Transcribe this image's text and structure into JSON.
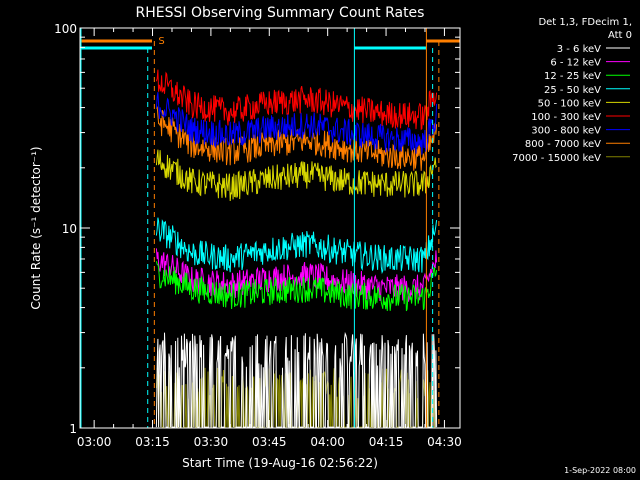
{
  "chart_data": {
    "type": "line",
    "title": "RHESSI Observing Summary Count Rates",
    "xlabel": "Start Time (19-Aug-16 02:56:22)",
    "ylabel": "Count Rate (s⁻¹ detector⁻¹)",
    "yscale": "log",
    "ylim": [
      1,
      100
    ],
    "xlim": [
      "02:56:22",
      "04:34:00"
    ],
    "x_ticks": [
      "03:00",
      "03:15",
      "03:30",
      "03:45",
      "04:00",
      "04:15",
      "04:30"
    ],
    "y_ticks": [
      "1",
      "10",
      "100"
    ],
    "legend_header": [
      "Det 1,3, FDecim 1,",
      "Att 0"
    ],
    "legend_position": "right",
    "flag_label": "S",
    "timestamp": "1-Sep-2022 08:00",
    "data_interval": [
      "03:16",
      "04:28"
    ],
    "attenuator_level_minutes_from_start": [
      [
        0,
        18.5
      ],
      [
        89,
        95
      ]
    ],
    "series": [
      {
        "name": "3 - 6 keV",
        "color": "#ffffff",
        "x": [
          "03:16",
          "03:25",
          "03:35",
          "03:45",
          "03:55",
          "04:05",
          "04:15",
          "04:25",
          "04:28"
        ],
        "values": [
          2.0,
          1.8,
          1.6,
          1.7,
          1.7,
          1.6,
          1.5,
          1.5,
          2.0
        ]
      },
      {
        "name": "6 - 12 keV",
        "color": "#ff00ff",
        "x": [
          "03:16",
          "03:25",
          "03:35",
          "03:45",
          "03:55",
          "04:05",
          "04:15",
          "04:25",
          "04:28"
        ],
        "values": [
          7.0,
          5.5,
          5.2,
          5.6,
          5.8,
          5.3,
          5.0,
          5.0,
          7.0
        ]
      },
      {
        "name": "12 - 25 keV",
        "color": "#00ff00",
        "x": [
          "03:16",
          "03:25",
          "03:35",
          "03:45",
          "03:55",
          "04:05",
          "04:15",
          "04:25",
          "04:28"
        ],
        "values": [
          6.0,
          5.0,
          4.6,
          4.8,
          5.0,
          4.6,
          4.5,
          4.5,
          6.0
        ]
      },
      {
        "name": "25 - 50 keV",
        "color": "#00ffff",
        "x": [
          "03:16",
          "03:25",
          "03:35",
          "03:45",
          "03:55",
          "04:05",
          "04:15",
          "04:25",
          "04:28"
        ],
        "values": [
          10.0,
          7.5,
          7.0,
          7.8,
          8.3,
          7.5,
          7.0,
          7.0,
          10.0
        ]
      },
      {
        "name": "50 - 100 keV",
        "color": "#d8d800",
        "x": [
          "03:16",
          "03:25",
          "03:35",
          "03:45",
          "03:55",
          "04:05",
          "04:15",
          "04:25",
          "04:28"
        ],
        "values": [
          22.0,
          17.0,
          16.0,
          17.5,
          18.5,
          17.0,
          16.5,
          16.5,
          22.0
        ]
      },
      {
        "name": "100 - 300 keV",
        "color": "#ff0000",
        "x": [
          "03:16",
          "03:25",
          "03:35",
          "03:45",
          "03:55",
          "04:05",
          "04:15",
          "04:25",
          "04:28"
        ],
        "values": [
          55.0,
          41.0,
          38.0,
          42.0,
          44.0,
          40.0,
          37.0,
          36.0,
          50.0
        ]
      },
      {
        "name": "300 - 800 keV",
        "color": "#0000ff",
        "x": [
          "03:16",
          "03:25",
          "03:35",
          "03:45",
          "03:55",
          "04:05",
          "04:15",
          "04:25",
          "04:28"
        ],
        "values": [
          42.0,
          31.0,
          29.0,
          31.5,
          33.0,
          30.0,
          28.0,
          27.0,
          36.0
        ]
      },
      {
        "name": "800 - 7000 keV",
        "color": "#ff7f00",
        "x": [
          "03:16",
          "03:25",
          "03:35",
          "03:45",
          "03:55",
          "04:05",
          "04:15",
          "04:25",
          "04:28"
        ],
        "values": [
          35.0,
          26.0,
          24.0,
          26.0,
          27.5,
          25.0,
          23.0,
          22.5,
          30.0
        ]
      },
      {
        "name": "7000 - 15000 keV",
        "color": "#808000",
        "x": [
          "03:16",
          "03:25",
          "03:35",
          "03:45",
          "03:55",
          "04:05",
          "04:15",
          "04:25",
          "04:28"
        ],
        "values": [
          1.5,
          1.3,
          1.2,
          1.3,
          1.3,
          1.2,
          1.2,
          1.2,
          1.4
        ]
      }
    ]
  }
}
